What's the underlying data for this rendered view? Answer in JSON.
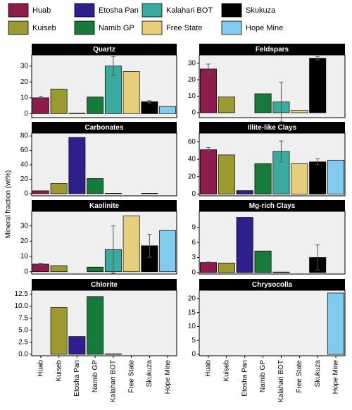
{
  "ylabel": "Mineral fraction (wt%)",
  "legend": [
    {
      "name": "Huab",
      "color": "#8c1c4c"
    },
    {
      "name": "Etosha Pan",
      "color": "#2e1f8c"
    },
    {
      "name": "Kalahari BOT",
      "color": "#3aab9e"
    },
    {
      "name": "Skukuza",
      "color": "#000000"
    },
    {
      "name": "Kuiseb",
      "color": "#9b9a30"
    },
    {
      "name": "Namib GP",
      "color": "#187a3a"
    },
    {
      "name": "Free State",
      "color": "#e5cf7c"
    },
    {
      "name": "Hope Mine",
      "color": "#80cbee"
    }
  ],
  "chart_data": [
    {
      "type": "bar",
      "title": "Quartz",
      "categories": [
        "Huab",
        "Kuiseb",
        "Etosha Pan",
        "Namib GP",
        "Kalahari BOT",
        "Free State",
        "Skukuza",
        "Hope Mine"
      ],
      "colors": [
        "#8c1c4c",
        "#9b9a30",
        "#2e1f8c",
        "#187a3a",
        "#3aab9e",
        "#e5cf7c",
        "#000000",
        "#80cbee"
      ],
      "values": [
        10,
        15.5,
        0.3,
        10.5,
        30,
        26.5,
        7.5,
        4.5
      ],
      "errors": [
        1,
        null,
        null,
        null,
        6,
        null,
        0.7,
        null
      ],
      "ylim": [
        -2.5,
        37
      ],
      "yticks": [
        0,
        10,
        20,
        30
      ]
    },
    {
      "type": "bar",
      "title": "Feldspars",
      "categories": [
        "Huab",
        "Kuiseb",
        "Etosha Pan",
        "Namib GP",
        "Kalahari BOT",
        "Free State",
        "Skukuza",
        "Hope Mine"
      ],
      "colors": [
        "#8c1c4c",
        "#9b9a30",
        "#2e1f8c",
        "#187a3a",
        "#3aab9e",
        "#e5cf7c",
        "#000000",
        "#80cbee"
      ],
      "values": [
        26.5,
        9.5,
        0,
        11.5,
        6.5,
        1.5,
        33,
        0
      ],
      "errors": [
        3,
        null,
        null,
        null,
        12,
        null,
        1,
        null
      ],
      "ylim": [
        -3,
        35
      ],
      "yticks": [
        0,
        10,
        20,
        30
      ]
    },
    {
      "type": "bar",
      "title": "Carbonates",
      "categories": [
        "Huab",
        "Kuiseb",
        "Etosha Pan",
        "Namib GP",
        "Kalahari BOT",
        "Free State",
        "Skukuza",
        "Hope Mine"
      ],
      "colors": [
        "#8c1c4c",
        "#9b9a30",
        "#2e1f8c",
        "#187a3a",
        "#3aab9e",
        "#e5cf7c",
        "#000000",
        "#80cbee"
      ],
      "values": [
        4,
        14,
        78,
        21,
        0.5,
        0,
        0.5,
        0
      ],
      "errors": [
        null,
        null,
        null,
        null,
        null,
        null,
        null,
        null
      ],
      "ylim": [
        -3,
        84
      ],
      "yticks": [
        0,
        20,
        40,
        60,
        80
      ]
    },
    {
      "type": "bar",
      "title": "Illite-like Clays",
      "categories": [
        "Huab",
        "Kuiseb",
        "Etosha Pan",
        "Namib GP",
        "Kalahari BOT",
        "Free State",
        "Skukuza",
        "Hope Mine"
      ],
      "colors": [
        "#8c1c4c",
        "#9b9a30",
        "#2e1f8c",
        "#187a3a",
        "#3aab9e",
        "#e5cf7c",
        "#000000",
        "#80cbee"
      ],
      "values": [
        51,
        45,
        4,
        35,
        49,
        35,
        37,
        39
      ],
      "errors": [
        2.5,
        null,
        null,
        null,
        12,
        null,
        3.5,
        null
      ],
      "ylim": [
        -2,
        70
      ],
      "yticks": [
        0,
        20,
        40,
        60
      ]
    },
    {
      "type": "bar",
      "title": "Kaolinite",
      "categories": [
        "Huab",
        "Kuiseb",
        "Etosha Pan",
        "Namib GP",
        "Kalahari BOT",
        "Free State",
        "Skukuza",
        "Hope Mine"
      ],
      "colors": [
        "#8c1c4c",
        "#9b9a30",
        "#2e1f8c",
        "#187a3a",
        "#3aab9e",
        "#e5cf7c",
        "#000000",
        "#80cbee"
      ],
      "values": [
        5,
        4,
        0,
        3,
        14.5,
        36.5,
        17,
        27
      ],
      "errors": [
        0.5,
        null,
        null,
        null,
        15.5,
        null,
        7.5,
        null
      ],
      "ylim": [
        -1.5,
        39.5
      ],
      "yticks": [
        0,
        10,
        20,
        30
      ]
    },
    {
      "type": "bar",
      "title": "Mg-rich Clays",
      "categories": [
        "Huab",
        "Kuiseb",
        "Etosha Pan",
        "Namib GP",
        "Kalahari BOT",
        "Free State",
        "Skukuza",
        "Hope Mine"
      ],
      "colors": [
        "#8c1c4c",
        "#9b9a30",
        "#2e1f8c",
        "#187a3a",
        "#3aab9e",
        "#e5cf7c",
        "#000000",
        "#80cbee"
      ],
      "values": [
        2,
        1.9,
        11,
        4.3,
        0.1,
        0,
        3,
        0
      ],
      "errors": [
        0.1,
        null,
        null,
        null,
        null,
        null,
        2.5,
        null
      ],
      "ylim": [
        -0.3,
        12.2
      ],
      "yticks": [
        0,
        3,
        6,
        9
      ]
    },
    {
      "type": "bar",
      "title": "Chlorite",
      "categories": [
        "Huab",
        "Kuiseb",
        "Etosha Pan",
        "Namib GP",
        "Kalahari BOT",
        "Free State",
        "Skukuza",
        "Hope Mine"
      ],
      "colors": [
        "#8c1c4c",
        "#9b9a30",
        "#2e1f8c",
        "#187a3a",
        "#3aab9e",
        "#e5cf7c",
        "#000000",
        "#80cbee"
      ],
      "values": [
        0,
        9.7,
        3.7,
        12,
        0.1,
        0,
        0,
        0
      ],
      "errors": [
        null,
        null,
        null,
        null,
        null,
        null,
        null,
        null
      ],
      "ylim": [
        -0.3,
        13.3
      ],
      "yticks": [
        {
          "value": 0,
          "label": "0.0"
        },
        2.5,
        {
          "value": 5,
          "label": "5.0"
        },
        7.5,
        {
          "value": 10,
          "label": "10.0"
        },
        12.5
      ]
    },
    {
      "type": "bar",
      "title": "Chrysocolla",
      "categories": [
        "Huab",
        "Kuiseb",
        "Etosha Pan",
        "Namib GP",
        "Kalahari BOT",
        "Free State",
        "Skukuza",
        "Hope Mine"
      ],
      "colors": [
        "#8c1c4c",
        "#9b9a30",
        "#2e1f8c",
        "#187a3a",
        "#3aab9e",
        "#e5cf7c",
        "#000000",
        "#80cbee"
      ],
      "values": [
        0,
        0,
        0,
        0,
        0,
        0,
        0,
        22
      ],
      "errors": [
        null,
        null,
        null,
        null,
        null,
        null,
        null,
        null
      ],
      "ylim": [
        -0.5,
        23
      ],
      "yticks": [
        0,
        5,
        10,
        15,
        20
      ]
    }
  ]
}
